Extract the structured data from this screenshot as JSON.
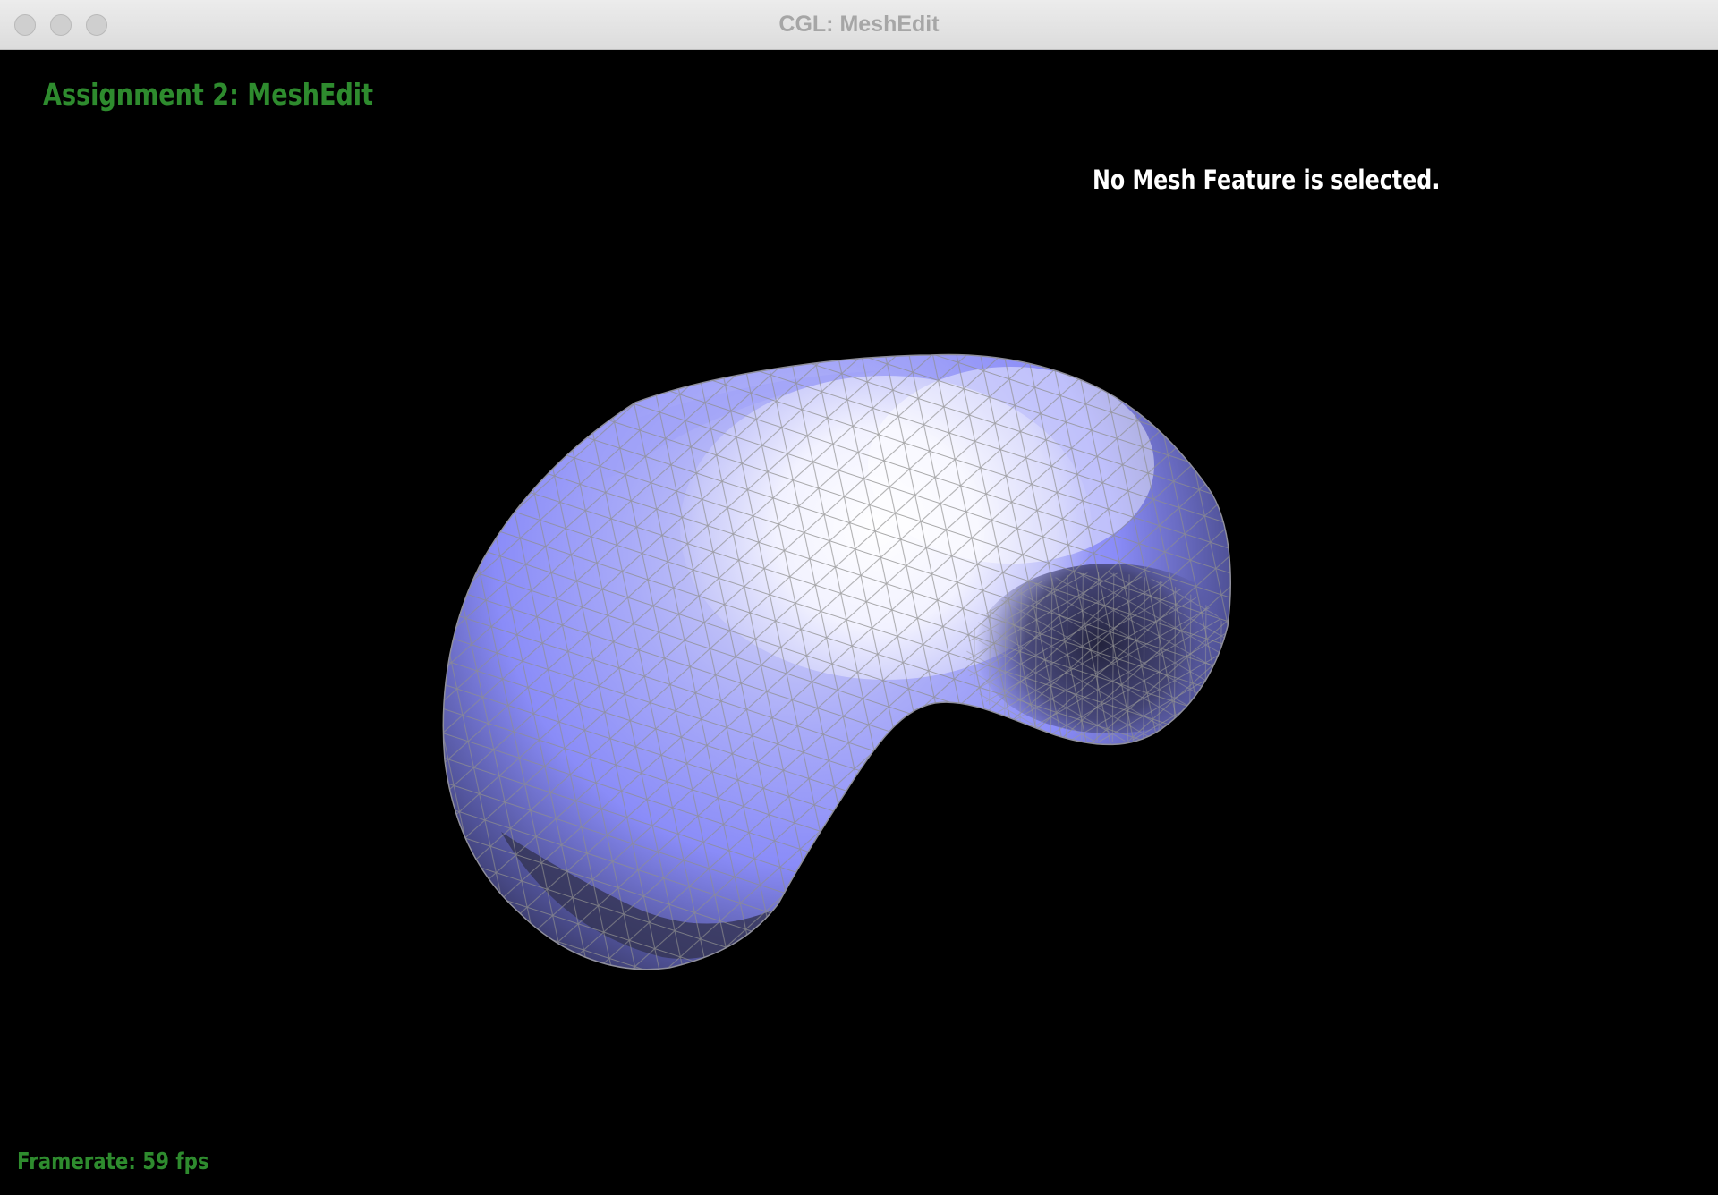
{
  "window": {
    "title": "CGL: MeshEdit",
    "buttons": [
      "close",
      "minimize",
      "zoom"
    ]
  },
  "viewport": {
    "assignment_title": "Assignment 2: MeshEdit",
    "selection_status": "No Mesh Feature is selected.",
    "framerate": "Framerate: 59 fps",
    "mesh": {
      "shape": "kidney-bean triangle mesh",
      "shading": [
        "#ffffff",
        "#8a8cf8",
        "#2b2b4a"
      ],
      "wireframe_color": "#8e8e8e"
    }
  }
}
